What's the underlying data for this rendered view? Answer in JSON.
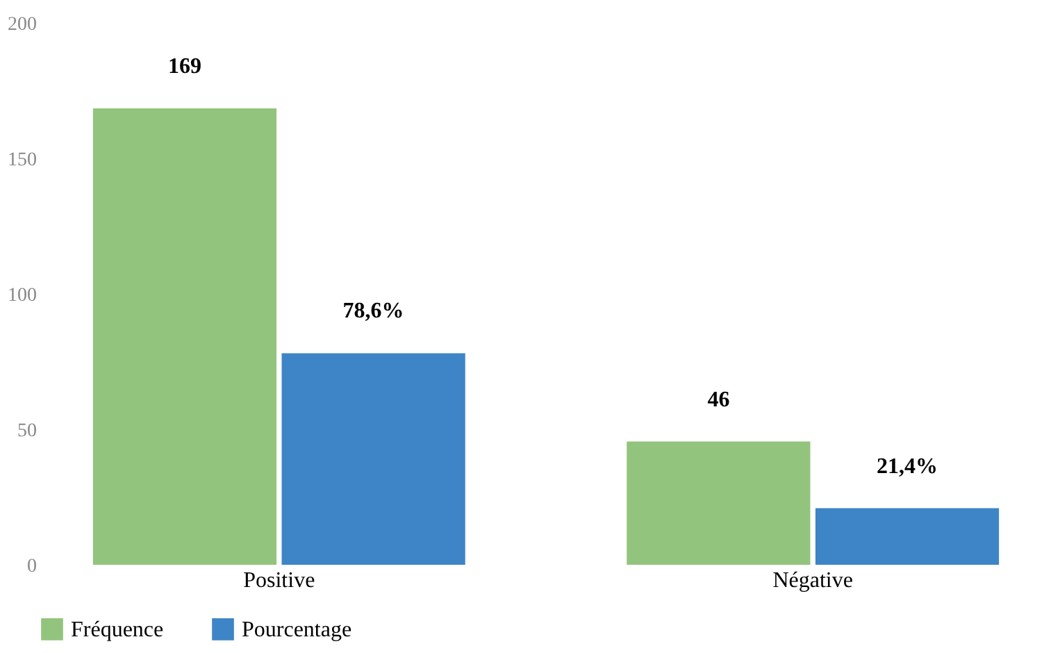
{
  "chart_data": {
    "type": "bar",
    "categories": [
      "Positive",
      "Négative"
    ],
    "series": [
      {
        "name": "Fréquence",
        "color": "#93c47d",
        "values": [
          169,
          46
        ],
        "value_labels": [
          "169",
          "46"
        ]
      },
      {
        "name": "Pourcentage",
        "color": "#3d85c6",
        "values": [
          78.6,
          21.4
        ],
        "value_labels": [
          "78,6%",
          "21,4%"
        ]
      }
    ],
    "ylim": [
      0,
      200
    ],
    "yticks": [
      0,
      50,
      100,
      150,
      200
    ],
    "grid": false,
    "legend": "bottom"
  }
}
